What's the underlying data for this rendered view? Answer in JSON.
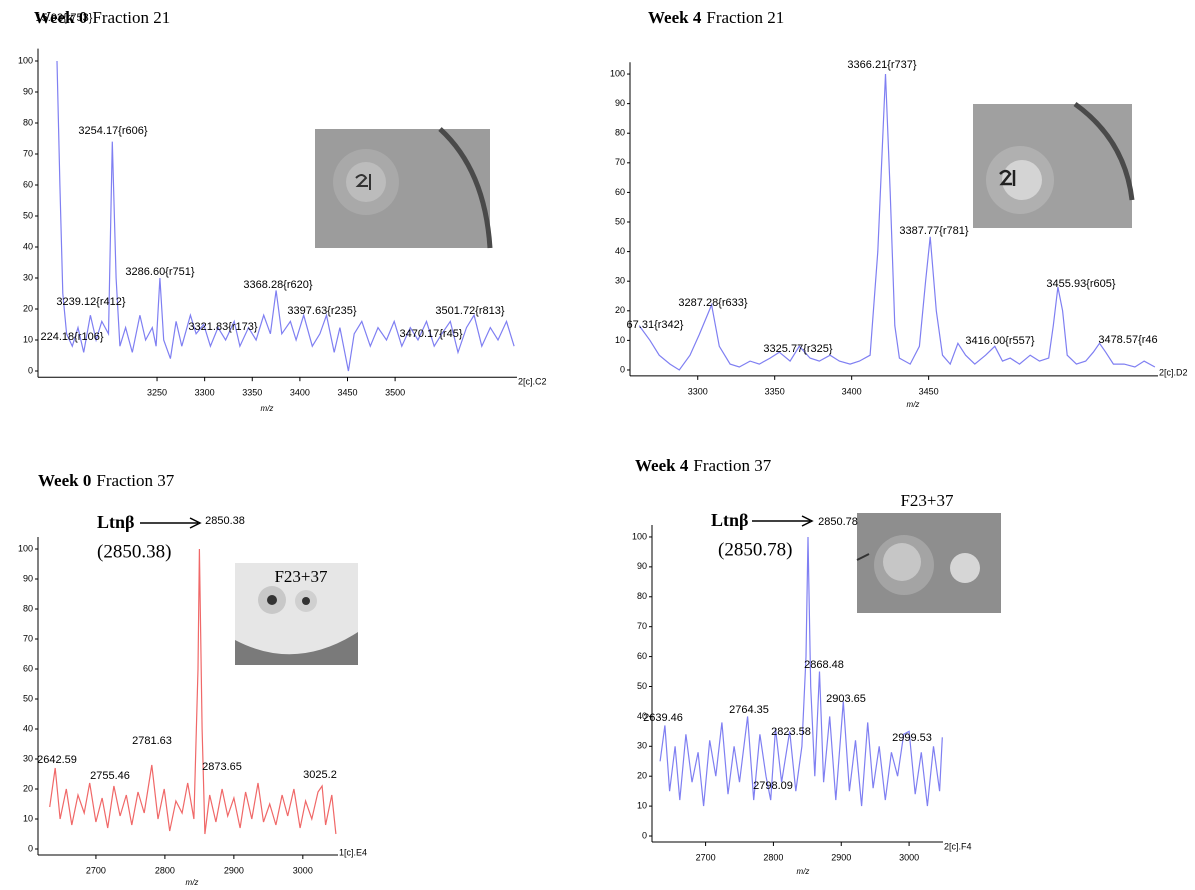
{
  "chart_data": [
    {
      "type": "line",
      "title_bold": "Week 0",
      "title": "Fraction 21",
      "x_label": "m/z",
      "corner_label": "2[c].C2",
      "color": "#7f7ff2",
      "xlim": [
        3125,
        3628
      ],
      "xticks": [
        3250,
        3300,
        3350,
        3400,
        3450,
        3500
      ],
      "ylim": [
        -2,
        104
      ],
      "yticks": [
        0,
        10,
        20,
        30,
        40,
        50,
        60,
        70,
        80,
        90,
        100
      ],
      "x": [
        3145,
        3148,
        3151,
        3155,
        3161,
        3167,
        3173,
        3180,
        3186,
        3192,
        3199,
        3203,
        3207,
        3211,
        3217,
        3224,
        3232,
        3238,
        3245,
        3249,
        3253,
        3257,
        3264,
        3270,
        3276,
        3285,
        3291,
        3299,
        3306,
        3314,
        3322,
        3331,
        3337,
        3346,
        3354,
        3362,
        3369,
        3375,
        3381,
        3390,
        3396,
        3404,
        3413,
        3421,
        3428,
        3436,
        3442,
        3451,
        3457,
        3465,
        3474,
        3482,
        3491,
        3499,
        3507,
        3516,
        3524,
        3533,
        3541,
        3549,
        3558,
        3566,
        3575,
        3583,
        3591,
        3600,
        3608,
        3617,
        3625
      ],
      "values": [
        100,
        60,
        25,
        12,
        8,
        14,
        6,
        18,
        10,
        16,
        12,
        74,
        30,
        8,
        14,
        6,
        18,
        10,
        14,
        8,
        30,
        10,
        4,
        16,
        8,
        18,
        12,
        15,
        8,
        14,
        10,
        16,
        8,
        14,
        10,
        18,
        12,
        26,
        12,
        16,
        10,
        18,
        8,
        12,
        18,
        6,
        14,
        0,
        12,
        16,
        8,
        14,
        10,
        16,
        8,
        14,
        10,
        16,
        8,
        12,
        16,
        6,
        14,
        18,
        8,
        14,
        10,
        16,
        8
      ],
      "peak_labels": [
        "15.93{r753}",
        "3254.17{r606}",
        "3239.12{r412}",
        "3286.60{r751}",
        "224.18{r106}",
        "3321.83{r173}",
        "3368.28{r620}",
        "3397.63{r235}",
        "3470.17{r45}",
        "3501.72{r813}"
      ]
    },
    {
      "type": "line",
      "title_bold": "Week 4",
      "title": "Fraction 21",
      "x_label": "m/z",
      "corner_label": "2[c].D2",
      "color": "#7f7ff2",
      "xlim": [
        3256,
        3599
      ],
      "xticks": [
        3300,
        3350,
        3400,
        3450
      ],
      "ylim": [
        -2,
        104
      ],
      "yticks": [
        0,
        10,
        20,
        30,
        40,
        50,
        60,
        70,
        80,
        90,
        100
      ],
      "x": [
        3262,
        3269,
        3275,
        3282,
        3288,
        3295,
        3301,
        3309,
        3314,
        3321,
        3327,
        3334,
        3340,
        3347,
        3353,
        3360,
        3366,
        3373,
        3379,
        3386,
        3392,
        3399,
        3405,
        3412,
        3417,
        3422,
        3425,
        3428,
        3431,
        3438,
        3444,
        3448,
        3451,
        3455,
        3459,
        3464,
        3469,
        3474,
        3480,
        3487,
        3493,
        3498,
        3503,
        3509,
        3516,
        3522,
        3528,
        3531,
        3534,
        3537,
        3540,
        3546,
        3552,
        3557,
        3561,
        3565,
        3570,
        3577,
        3584,
        3590,
        3597
      ],
      "values": [
        15,
        10,
        5,
        2,
        0,
        5,
        12,
        22,
        8,
        2,
        1,
        3,
        2,
        4,
        6,
        3,
        8,
        4,
        3,
        5,
        3,
        2,
        3,
        5,
        40,
        100,
        60,
        15,
        4,
        2,
        8,
        30,
        45,
        20,
        5,
        2,
        9,
        5,
        2,
        5,
        8,
        3,
        4,
        2,
        5,
        3,
        4,
        15,
        28,
        20,
        5,
        2,
        3,
        6,
        9,
        6,
        2,
        2,
        1,
        3,
        1
      ],
      "peak_labels": [
        "67.31{r342}",
        "3287.28{r633}",
        "3325.77{r325}",
        "3366.21{r737}",
        "3387.77{r781}",
        "3416.00{r557}",
        "3455.93{r605}",
        "3478.57{r46"
      ]
    },
    {
      "type": "line",
      "title_bold": "Week 0",
      "title": "Fraction 37",
      "x_label": "m/z",
      "corner_label": "1[c].E4",
      "color": "#f06868",
      "xlim": [
        2616,
        3051
      ],
      "xticks": [
        2700,
        2800,
        2900,
        3000
      ],
      "ylim": [
        -2,
        104
      ],
      "yticks": [
        0,
        10,
        20,
        30,
        40,
        50,
        60,
        70,
        80,
        90,
        100
      ],
      "x": [
        2633,
        2641,
        2648,
        2657,
        2665,
        2674,
        2683,
        2691,
        2700,
        2709,
        2717,
        2726,
        2735,
        2744,
        2752,
        2761,
        2770,
        2781,
        2790,
        2799,
        2807,
        2816,
        2825,
        2833,
        2842,
        2848,
        2850,
        2854,
        2858,
        2865,
        2874,
        2883,
        2891,
        2900,
        2909,
        2917,
        2926,
        2935,
        2943,
        2952,
        2961,
        2970,
        2978,
        2987,
        2996,
        3004,
        3013,
        3022,
        3028,
        3033,
        3042,
        3048
      ],
      "values": [
        14,
        27,
        10,
        20,
        8,
        18,
        12,
        22,
        9,
        17,
        7,
        21,
        11,
        18,
        8,
        19,
        12,
        28,
        10,
        20,
        6,
        16,
        12,
        22,
        10,
        60,
        100,
        40,
        5,
        18,
        9,
        20,
        11,
        17,
        7,
        19,
        10,
        22,
        9,
        15,
        8,
        18,
        11,
        20,
        7,
        16,
        10,
        19,
        21,
        8,
        18,
        5
      ],
      "peak_labels": [
        "2850.38",
        "2642.59",
        "2781.63",
        "2755.46",
        "2873.65",
        "3025.2"
      ],
      "annotations": [
        "Ltnβ",
        "(2850.38)",
        "F23+37"
      ]
    },
    {
      "type": "line",
      "title_bold": "Week 4",
      "title": "Fraction 37",
      "x_label": "m/z",
      "corner_label": "2[c].F4",
      "color": "#7f7ff2",
      "xlim": [
        2621,
        3050
      ],
      "xticks": [
        2700,
        2800,
        2900,
        3000
      ],
      "ylim": [
        -2,
        104
      ],
      "yticks": [
        0,
        10,
        20,
        30,
        40,
        50,
        60,
        70,
        80,
        90,
        100
      ],
      "x": [
        2633,
        2640,
        2647,
        2655,
        2662,
        2671,
        2680,
        2689,
        2697,
        2706,
        2715,
        2724,
        2733,
        2742,
        2750,
        2762,
        2771,
        2780,
        2789,
        2796,
        2803,
        2812,
        2824,
        2833,
        2842,
        2848,
        2851,
        2855,
        2861,
        2868,
        2874,
        2883,
        2892,
        2903,
        2912,
        2921,
        2930,
        2939,
        2947,
        2956,
        2965,
        2974,
        2983,
        2992,
        3000,
        3009,
        3018,
        3027,
        3036,
        3045,
        3049
      ],
      "values": [
        25,
        37,
        15,
        30,
        12,
        34,
        18,
        28,
        10,
        32,
        20,
        38,
        14,
        30,
        18,
        40,
        12,
        34,
        20,
        12,
        36,
        18,
        35,
        15,
        30,
        60,
        100,
        50,
        20,
        55,
        18,
        40,
        12,
        45,
        15,
        32,
        10,
        38,
        16,
        30,
        12,
        28,
        20,
        34,
        35,
        14,
        28,
        10,
        30,
        15,
        33
      ],
      "peak_labels": [
        "2850.78",
        "2639.46",
        "2764.35",
        "2823.58",
        "2798.09",
        "2868.48",
        "2903.65",
        "2999.53"
      ],
      "annotations": [
        "Ltnβ",
        "(2850.78)",
        "F23+37"
      ]
    }
  ]
}
